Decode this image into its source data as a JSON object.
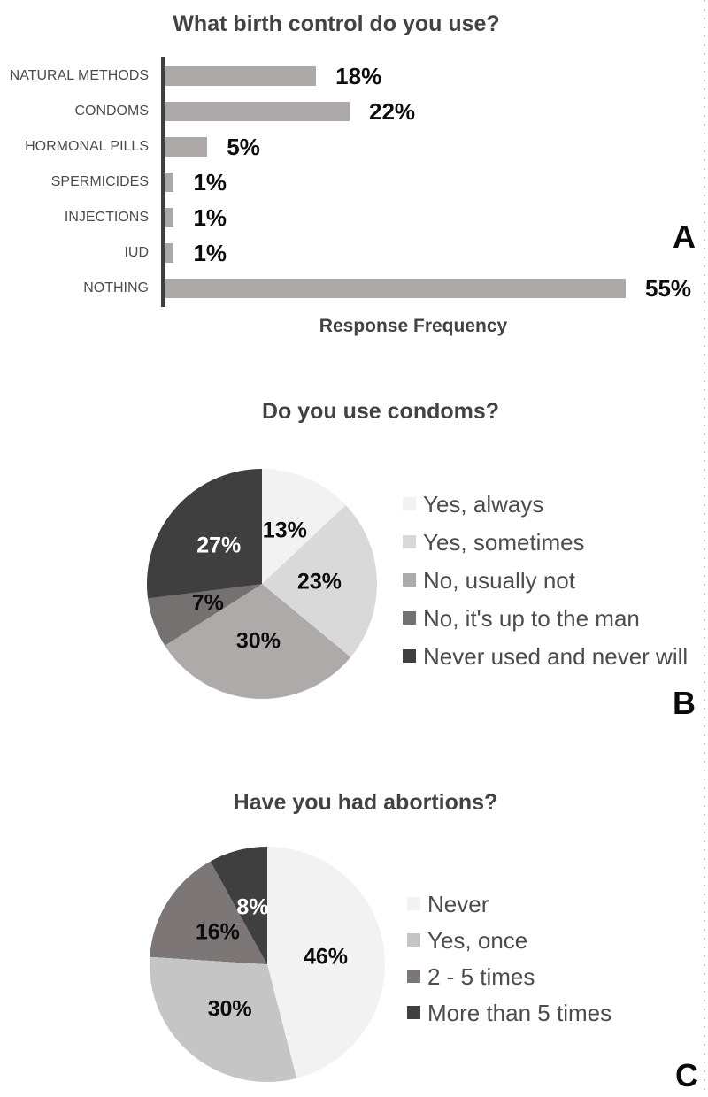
{
  "chart_data": [
    {
      "id": "bar_birth_control",
      "type": "bar",
      "orientation": "horizontal",
      "title": "What birth control do you use?",
      "xlabel": "Response Frequency",
      "categories": [
        "NATURAL METHODS",
        "CONDOMS",
        "HORMONAL PILLS",
        "SPERMICIDES",
        "INJECTIONS",
        "IUD",
        "NOTHING"
      ],
      "values": [
        18,
        22,
        5,
        1,
        1,
        1,
        55
      ],
      "value_labels": [
        "18%",
        "22%",
        "5%",
        "1%",
        "1%",
        "1%",
        "55%"
      ],
      "xlim": [
        0,
        55
      ],
      "grid": false,
      "value_axis_visible": false,
      "bar_color": "#ada9a9",
      "axis_color": "#3f3f3f",
      "panel_label": "A"
    },
    {
      "id": "pie_condom_use",
      "type": "pie",
      "title": "Do you use condoms?",
      "start_angle_deg": 0,
      "direction": "clockwise",
      "legend_position": "right",
      "panel_label": "B",
      "slices": [
        {
          "label": "Yes, always",
          "value": 13,
          "display": "13%",
          "color": "#f2f2f2",
          "text_color": "#0c0c0c"
        },
        {
          "label": "Yes, sometimes",
          "value": 23,
          "display": "23%",
          "color": "#d9d9d9",
          "text_color": "#0c0c0c"
        },
        {
          "label": "No, usually not",
          "value": 30,
          "display": "30%",
          "color": "#aeaaaa",
          "text_color": "#0c0c0c"
        },
        {
          "label": "No, it's up to the man",
          "value": 7,
          "display": "7%",
          "color": "#767171",
          "text_color": "#0c0c0c"
        },
        {
          "label": "Never used and never will",
          "value": 27,
          "display": "27%",
          "color": "#3f3f3f",
          "text_color": "#ffffff"
        }
      ]
    },
    {
      "id": "pie_abortions",
      "type": "pie",
      "title": "Have you had abortions?",
      "start_angle_deg": 0,
      "direction": "clockwise",
      "legend_position": "right",
      "panel_label": "C",
      "slices": [
        {
          "label": "Never",
          "value": 46,
          "display": "46%",
          "color": "#f2f2f2",
          "text_color": "#0c0c0c"
        },
        {
          "label": "Yes, once",
          "value": 30,
          "display": "30%",
          "color": "#c5c5c5",
          "text_color": "#0c0c0c"
        },
        {
          "label": "2 - 5 times",
          "value": 16,
          "display": "16%",
          "color": "#7d7676",
          "text_color": "#0c0c0c"
        },
        {
          "label": "More than 5 times",
          "value": 8,
          "display": "8%",
          "color": "#3f3f3f",
          "text_color": "#ffffff"
        }
      ]
    }
  ]
}
